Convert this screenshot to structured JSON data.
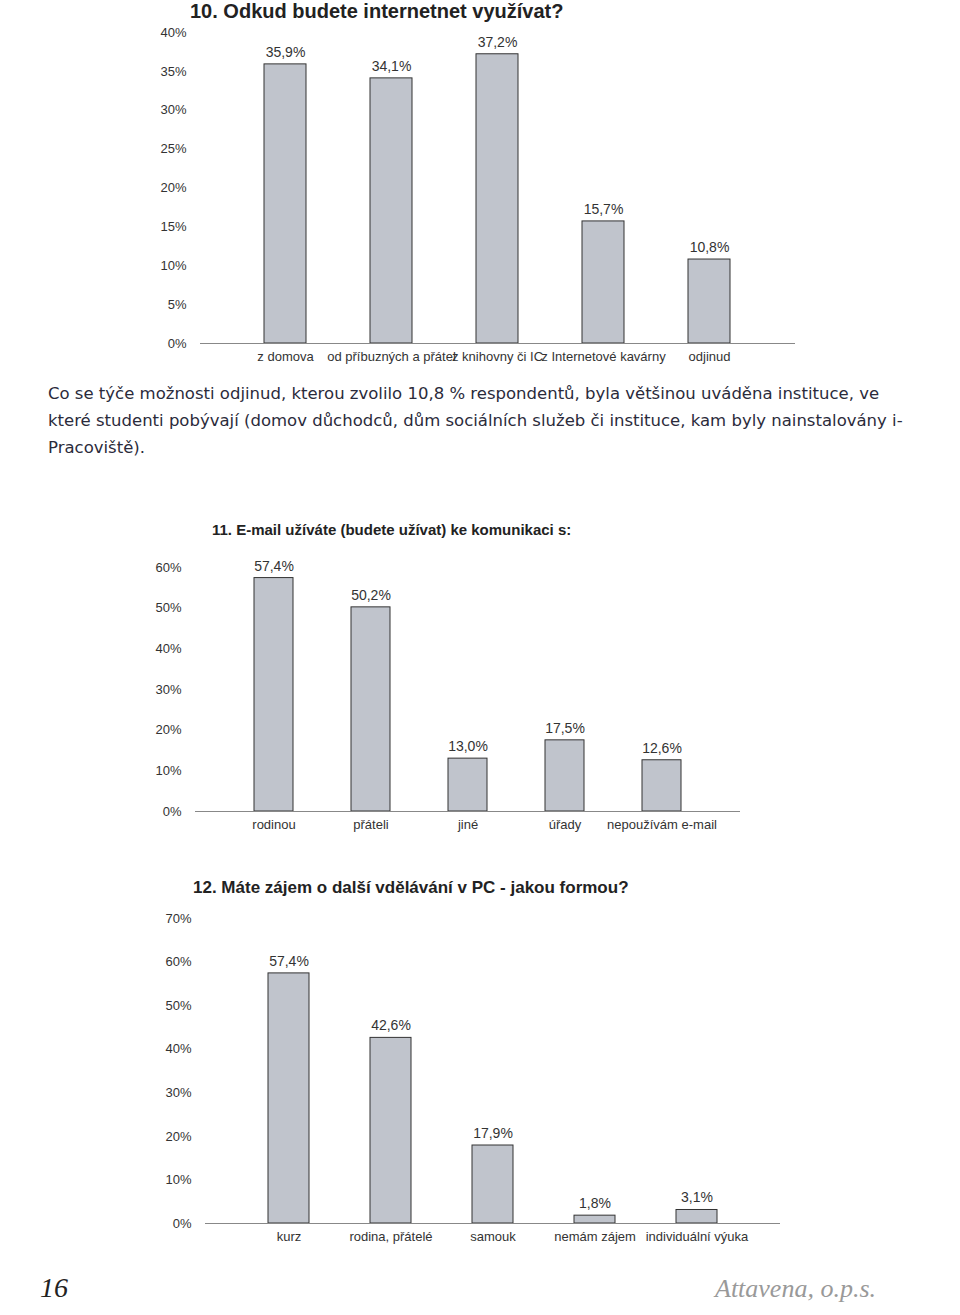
{
  "chart_data": [
    {
      "type": "bar",
      "title": "10. Odkud budete internetnet využívat?",
      "categories": [
        "z domova",
        "od příbuzných a přátel",
        "z knihovny či IC",
        "z Internetové kavárny",
        "odjinud"
      ],
      "values": [
        35.9,
        34.1,
        37.2,
        15.7,
        10.8
      ],
      "value_labels": [
        "35,9%",
        "34,1%",
        "37,2%",
        "15,7%",
        "10,8%"
      ],
      "color": "#c0c4cc",
      "data_labels": true,
      "grid": false,
      "ylim": [
        0,
        40
      ],
      "yticks": [
        {
          "value": 0,
          "label": "0%"
        },
        {
          "value": 5,
          "label": "5%"
        },
        {
          "value": 10,
          "label": "10%"
        },
        {
          "value": 15,
          "label": "15%"
        },
        {
          "value": 20,
          "label": "20%"
        },
        {
          "value": 25,
          "label": "25%"
        },
        {
          "value": 30,
          "label": "30%"
        },
        {
          "value": 35,
          "label": "35%"
        },
        {
          "value": 40,
          "label": "40%"
        }
      ]
    },
    {
      "type": "bar",
      "title": "11. E-mail užíváte (budete užívat) ke komunikaci s:",
      "categories": [
        "rodinou",
        "přáteli",
        "jiné",
        "úřady",
        "nepoužívám e-mail"
      ],
      "values": [
        57.4,
        50.2,
        13.0,
        17.5,
        12.6
      ],
      "value_labels": [
        "57,4%",
        "50,2%",
        "13,0%",
        "17,5%",
        "12,6%"
      ],
      "color": "#c0c4cc",
      "data_labels": true,
      "grid": false,
      "ylim": [
        0,
        60
      ],
      "yticks": [
        {
          "value": 0,
          "label": "0%"
        },
        {
          "value": 10,
          "label": "10%"
        },
        {
          "value": 20,
          "label": "20%"
        },
        {
          "value": 30,
          "label": "30%"
        },
        {
          "value": 40,
          "label": "40%"
        },
        {
          "value": 50,
          "label": "50%"
        },
        {
          "value": 60,
          "label": "60%"
        }
      ]
    },
    {
      "type": "bar",
      "title": "12. Máte zájem o další vdělávání v PC - jakou formou?",
      "categories": [
        "kurz",
        "rodina, přátelé",
        "samouk",
        "nemám zájem",
        "individuální výuka"
      ],
      "values": [
        57.4,
        42.6,
        17.9,
        1.8,
        3.1
      ],
      "value_labels": [
        "57,4%",
        "42,6%",
        "17,9%",
        "1,8%",
        "3,1%"
      ],
      "color": "#c0c4cc",
      "data_labels": true,
      "grid": false,
      "ylim": [
        0,
        70
      ],
      "yticks": [
        {
          "value": 0,
          "label": "0%"
        },
        {
          "value": 10,
          "label": "10%"
        },
        {
          "value": 20,
          "label": "20%"
        },
        {
          "value": 30,
          "label": "30%"
        },
        {
          "value": 40,
          "label": "40%"
        },
        {
          "value": 50,
          "label": "50%"
        },
        {
          "value": 60,
          "label": "60%"
        },
        {
          "value": 70,
          "label": "70%"
        }
      ]
    }
  ],
  "paragraph": "Co se týče možnosti odjinud, kterou zvolilo 10,8 % respondentů, byla většinou uváděna instituce, ve které studenti pobývají (domov důchodců, dům sociálních služeb či instituce, kam byly nainstalovány i-Pracoviště).",
  "page_number": "16",
  "footer": "Attavena, o.p.s."
}
